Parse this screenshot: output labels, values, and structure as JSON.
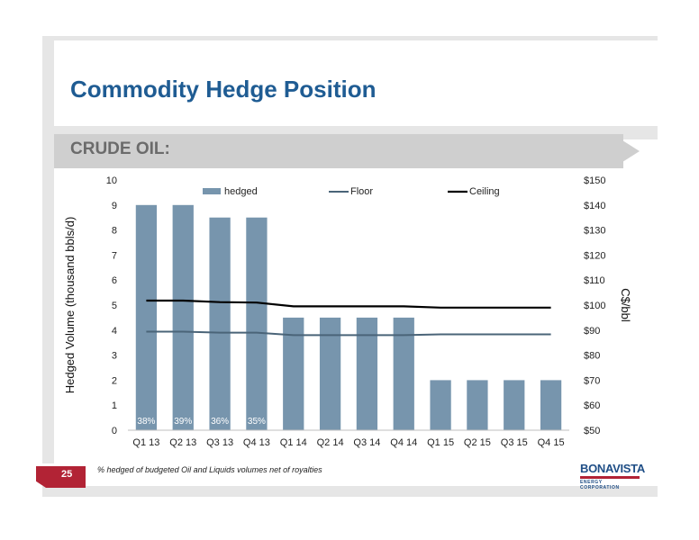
{
  "slide": {
    "title": "Commodity Hedge Position",
    "section_label": "CRUDE OIL:",
    "page_number": "25",
    "footnote": "% hedged of budgeted  Oil and Liquids volumes net of royalties",
    "logo_name": "BONAVISTA",
    "logo_subtext": "ENERGY CORPORATION"
  },
  "colors": {
    "title": "#1f5c93",
    "bar": "#7795ad",
    "floor_line": "#4a6478",
    "ceiling_line": "#000000",
    "accent_red": "#b22335"
  },
  "chart_data": {
    "type": "bar",
    "categories": [
      "Q1 13",
      "Q2 13",
      "Q3 13",
      "Q4 13",
      "Q1 14",
      "Q2 14",
      "Q3 14",
      "Q4 14",
      "Q1 15",
      "Q2 15",
      "Q3 15",
      "Q4 15"
    ],
    "series": [
      {
        "name": "hedged",
        "type": "bar",
        "axis": "left",
        "values": [
          9,
          9,
          8.5,
          8.5,
          4.5,
          4.5,
          4.5,
          4.5,
          2,
          2,
          2,
          2
        ]
      },
      {
        "name": "Floor",
        "type": "line",
        "axis": "right",
        "values": [
          89.4,
          89.4,
          89.0,
          89.0,
          88.0,
          88.0,
          88.0,
          88.0,
          88.3,
          88.3,
          88.3,
          88.3
        ]
      },
      {
        "name": "Ceiling",
        "type": "line",
        "axis": "right",
        "values": [
          101.8,
          101.8,
          101.2,
          101.0,
          99.5,
          99.5,
          99.5,
          99.5,
          99.0,
          99.0,
          99.0,
          99.0
        ]
      }
    ],
    "bar_labels": [
      "38%",
      "39%",
      "36%",
      "35%",
      "",
      "",
      "",
      "",
      "",
      "",
      "",
      ""
    ],
    "ylabel": "Hedged Volume (thousand bbls/d)",
    "y2label": "C$/bbl",
    "ylim": [
      0,
      10
    ],
    "y2lim": [
      50,
      150
    ],
    "yticks": [
      "0",
      "1",
      "2",
      "3",
      "4",
      "5",
      "6",
      "7",
      "8",
      "9",
      "10"
    ],
    "y2ticks": [
      "$50",
      "$60",
      "$70",
      "$80",
      "$90",
      "$100",
      "$110",
      "$120",
      "$130",
      "$140",
      "$150"
    ],
    "legend_position": "top",
    "grid": false
  }
}
